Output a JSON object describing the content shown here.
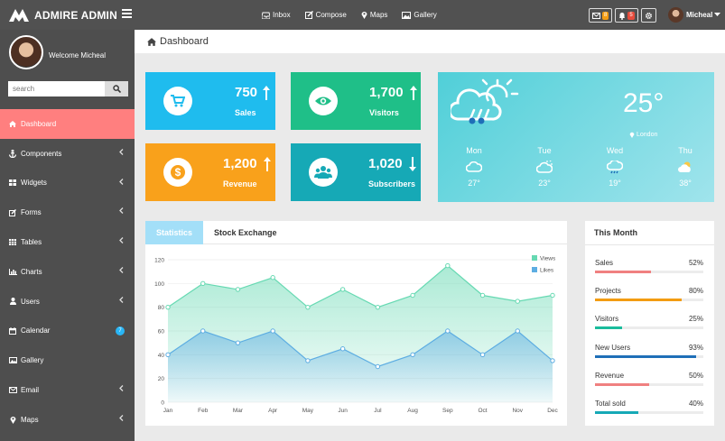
{
  "app": {
    "title": "ADMIRE ADMIN"
  },
  "topnav": [
    {
      "label": "Inbox",
      "icon": "inbox-icon"
    },
    {
      "label": "Compose",
      "icon": "compose-icon"
    },
    {
      "label": "Maps",
      "icon": "map-marker-icon"
    },
    {
      "label": "Gallery",
      "icon": "gallery-icon"
    }
  ],
  "top_badges": {
    "messages": "8",
    "notifications": "5"
  },
  "user": {
    "name": "Micheal",
    "welcome": "Welcome Micheal"
  },
  "search": {
    "placeholder": "search"
  },
  "sidebar": {
    "items": [
      {
        "label": "Dashboard",
        "icon": "home-icon",
        "active": true
      },
      {
        "label": "Components",
        "icon": "anchor-icon"
      },
      {
        "label": "Widgets",
        "icon": "grid-icon"
      },
      {
        "label": "Forms",
        "icon": "edit-icon"
      },
      {
        "label": "Tables",
        "icon": "table-icon"
      },
      {
        "label": "Charts",
        "icon": "bar-chart-icon"
      },
      {
        "label": "Users",
        "icon": "user-icon"
      },
      {
        "label": "Calendar",
        "icon": "calendar-icon",
        "badge": "7"
      },
      {
        "label": "Gallery",
        "icon": "image-icon"
      },
      {
        "label": "Email",
        "icon": "envelope-icon"
      },
      {
        "label": "Maps",
        "icon": "map-marker-icon"
      }
    ]
  },
  "page": {
    "title": "Dashboard"
  },
  "stats": {
    "sales": {
      "value": "750",
      "label": "Sales",
      "color": "#1fbcee",
      "trend": "up"
    },
    "visitors": {
      "value": "1,700",
      "label": "Visitors",
      "color": "#1fbf88",
      "trend": "up"
    },
    "revenue": {
      "value": "1,200",
      "label": "Revenue",
      "color": "#f9a11b",
      "trend": "up"
    },
    "subscribers": {
      "value": "1,020",
      "label": "Subscribers",
      "color": "#16a9b6",
      "trend": "down"
    }
  },
  "weather": {
    "temp": "25°",
    "location": "London",
    "days": [
      {
        "day": "Mon",
        "temp": "27°",
        "icon": "cloud-icon"
      },
      {
        "day": "Tue",
        "temp": "23°",
        "icon": "sun-cloud-icon"
      },
      {
        "day": "Wed",
        "temp": "19°",
        "icon": "rain-cloud-icon"
      },
      {
        "day": "Thu",
        "temp": "38°",
        "icon": "sunny-icon"
      }
    ]
  },
  "tabs": {
    "statistics": "Statistics",
    "stock": "Stock Exchange"
  },
  "chart_data": {
    "type": "area",
    "categories": [
      "Jan",
      "Feb",
      "Mar",
      "Apr",
      "May",
      "Jun",
      "Jul",
      "Aug",
      "Sep",
      "Oct",
      "Nov",
      "Dec"
    ],
    "series": [
      {
        "name": "Views",
        "color": "#66d9b2",
        "values": [
          80,
          100,
          95,
          105,
          80,
          95,
          80,
          90,
          115,
          90,
          85,
          90
        ]
      },
      {
        "name": "Likes",
        "color": "#5dade2",
        "values": [
          40,
          60,
          50,
          60,
          35,
          45,
          30,
          40,
          60,
          40,
          60,
          35
        ]
      }
    ],
    "ylim": [
      0,
      120
    ],
    "yticks": [
      0,
      20,
      40,
      60,
      80,
      100,
      120
    ],
    "legend": "top-right"
  },
  "this_month": {
    "title": "This Month",
    "rows": [
      {
        "label": "Sales",
        "value": "52%",
        "pct": 52,
        "color": "#f08080"
      },
      {
        "label": "Projects",
        "value": "80%",
        "pct": 80,
        "color": "#f39c12"
      },
      {
        "label": "Visitors",
        "value": "25%",
        "pct": 25,
        "color": "#1abc9c"
      },
      {
        "label": "New Users",
        "value": "93%",
        "pct": 93,
        "color": "#1f6fb8"
      },
      {
        "label": "Revenue",
        "value": "50%",
        "pct": 50,
        "color": "#f08080"
      },
      {
        "label": "Total sold",
        "value": "40%",
        "pct": 40,
        "color": "#16a9b6"
      }
    ]
  }
}
